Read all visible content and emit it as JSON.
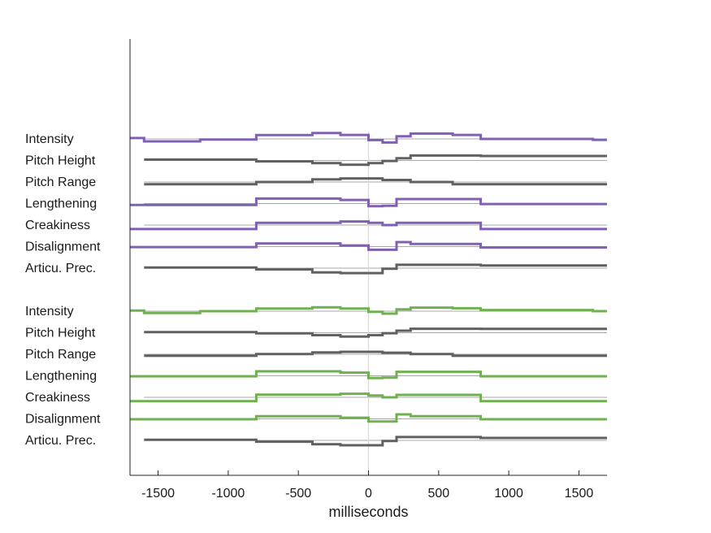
{
  "chart_data": {
    "type": "line",
    "title": "",
    "xlabel": "milliseconds",
    "ylabel": "",
    "xlim": [
      -1700,
      1700
    ],
    "xticks": [
      -1500,
      -1000,
      -500,
      0,
      500,
      1000,
      1500
    ],
    "grid": false,
    "zero_line": 0,
    "colors": {
      "purple": "#8060b0",
      "gray": "#606060",
      "green": "#70b050",
      "baseline": "#a8a8a8",
      "zero": "#d8d8d8"
    },
    "groups": [
      {
        "rows": [
          {
            "label": "Intensity",
            "color": "purple",
            "values": [
              0.2,
              -0.55,
              -0.15,
              0.85,
              1.3,
              0.9,
              -0.25,
              -0.8,
              0.6,
              1.2,
              0.9,
              0.0,
              -0.2,
              0.2
            ]
          },
          {
            "label": "Pitch Height",
            "color": "gray",
            "values": [
              0.2,
              0.2,
              0.2,
              -0.2,
              -0.6,
              -0.95,
              -0.6,
              -0.1,
              0.5,
              1.1,
              1.1,
              1.0,
              1.0,
              0.5
            ]
          },
          {
            "label": "Pitch Range",
            "color": "gray",
            "values": [
              -0.5,
              -0.5,
              -0.5,
              0.0,
              0.6,
              0.8,
              0.8,
              0.45,
              0.45,
              0.0,
              -0.5,
              -0.5,
              -0.5,
              -0.5
            ]
          },
          {
            "label": "Lengthening",
            "color": "purple",
            "values": [
              -0.3,
              -0.3,
              -0.3,
              1.1,
              1.1,
              0.8,
              -0.6,
              -0.5,
              1.0,
              1.0,
              1.0,
              -0.1,
              -0.1,
              -0.1
            ]
          },
          {
            "label": "Creakiness",
            "color": "purple",
            "values": [
              -0.9,
              -0.9,
              -0.9,
              0.5,
              0.5,
              0.8,
              0.5,
              0.0,
              0.5,
              0.5,
              0.5,
              -0.9,
              -0.9,
              -0.9
            ]
          },
          {
            "label": "Disalignment",
            "color": "purple",
            "values": [
              -0.1,
              -0.1,
              -0.1,
              0.7,
              0.7,
              0.25,
              -0.7,
              -0.7,
              1.0,
              0.6,
              0.6,
              -0.2,
              -0.2,
              -0.2
            ]
          },
          {
            "label": "Articu. Prec.",
            "color": "gray",
            "values": [
              0.15,
              0.15,
              0.15,
              -0.3,
              -0.95,
              -1.1,
              -1.1,
              -0.15,
              0.75,
              0.75,
              0.75,
              0.6,
              0.6,
              0.6
            ]
          }
        ]
      },
      {
        "rows": [
          {
            "label": "Intensity",
            "color": "green",
            "values": [
              0.15,
              -0.4,
              0.0,
              0.6,
              0.85,
              0.6,
              -0.15,
              -0.55,
              0.4,
              0.8,
              0.65,
              0.25,
              0.0,
              0.15
            ]
          },
          {
            "label": "Pitch Height",
            "color": "gray",
            "values": [
              0.15,
              0.15,
              0.15,
              -0.15,
              -0.55,
              -0.85,
              -0.55,
              -0.1,
              0.45,
              0.9,
              0.9,
              0.85,
              0.85,
              0.45
            ]
          },
          {
            "label": "Pitch Range",
            "color": "gray",
            "values": [
              -0.35,
              -0.35,
              -0.35,
              0.05,
              0.4,
              0.55,
              0.55,
              0.35,
              0.35,
              0.05,
              -0.35,
              -0.35,
              -0.35,
              -0.35
            ]
          },
          {
            "label": "Lengthening",
            "color": "green",
            "values": [
              -0.1,
              -0.1,
              -0.1,
              1.0,
              1.0,
              0.7,
              -0.5,
              -0.4,
              0.9,
              0.9,
              0.9,
              -0.1,
              -0.1,
              -0.1
            ]
          },
          {
            "label": "Creakiness",
            "color": "green",
            "values": [
              -0.85,
              -0.85,
              -0.85,
              0.6,
              0.6,
              0.8,
              0.4,
              0.0,
              0.55,
              0.55,
              0.55,
              -0.85,
              -0.85,
              -0.85
            ]
          },
          {
            "label": "Disalignment",
            "color": "green",
            "values": [
              -0.1,
              -0.1,
              -0.1,
              0.6,
              0.6,
              0.25,
              -0.6,
              -0.6,
              1.0,
              0.6,
              0.6,
              -0.1,
              -0.1,
              -0.1
            ]
          },
          {
            "label": "Articu. Prec.",
            "color": "gray",
            "values": [
              0.15,
              0.15,
              0.15,
              -0.3,
              -0.85,
              -1.1,
              -1.1,
              -0.15,
              0.75,
              0.75,
              0.75,
              0.55,
              0.55,
              0.55
            ]
          }
        ]
      }
    ],
    "segments_ms": [
      [
        -1700,
        -1600
      ],
      [
        -1600,
        -1200
      ],
      [
        -1200,
        -800
      ],
      [
        -800,
        -400
      ],
      [
        -400,
        -200
      ],
      [
        -200,
        0
      ],
      [
        0,
        100
      ],
      [
        100,
        200
      ],
      [
        200,
        300
      ],
      [
        300,
        600
      ],
      [
        600,
        800
      ],
      [
        800,
        1600
      ],
      [
        1600,
        1700
      ]
    ]
  }
}
